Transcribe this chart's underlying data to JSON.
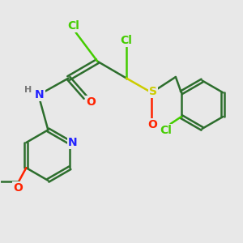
{
  "bg_color": "#e8e8e8",
  "bond_color": "#2d6e2d",
  "bond_width": 1.8,
  "atom_colors": {
    "Cl": "#44cc00",
    "S": "#cccc00",
    "O": "#ff2200",
    "N": "#2222ff",
    "H": "#777777",
    "C": "#2d6e2d"
  },
  "font_size": 9
}
